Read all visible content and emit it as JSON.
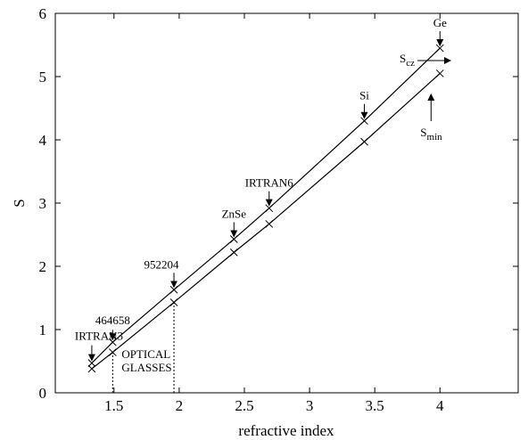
{
  "chart_data": {
    "type": "line",
    "xlabel": "refractive index",
    "ylabel": "S",
    "xlim": [
      1.05,
      4.6
    ],
    "ylim": [
      0,
      6
    ],
    "x_ticks": [
      1.5,
      2,
      2.5,
      3,
      3.5,
      4
    ],
    "x_tick_labels": [
      "1.5",
      "2",
      "2.5",
      "3",
      "3.5",
      "4"
    ],
    "y_ticks": [
      0,
      1,
      2,
      3,
      4,
      5,
      6
    ],
    "y_tick_labels": [
      "0",
      "1",
      "2",
      "3",
      "4",
      "5",
      "6"
    ],
    "grid": false,
    "series": [
      {
        "name": "S_cz",
        "x": [
          1.33,
          1.49,
          1.96,
          2.42,
          2.69,
          3.42,
          4.0
        ],
        "y": [
          0.47,
          0.8,
          1.63,
          2.43,
          2.92,
          4.3,
          5.45
        ]
      },
      {
        "name": "S_min",
        "x": [
          1.33,
          1.49,
          1.96,
          2.42,
          2.69,
          3.42,
          4.0
        ],
        "y": [
          0.38,
          0.64,
          1.43,
          2.22,
          2.67,
          3.97,
          5.05
        ]
      }
    ],
    "vertical_reference_lines": [
      1.49,
      1.96
    ],
    "annotations": {
      "ge": "Ge",
      "si": "Si",
      "irtran6": "IRTRAN6",
      "znse": "ZnSe",
      "n952204": "952204",
      "n464658": "464658",
      "irtran3": "IRTRAN3",
      "optical": "OPTICAL",
      "glasses": "GLASSES",
      "scz_main": "S",
      "scz_sub": "cz",
      "smin_main": "S",
      "smin_sub": "min"
    }
  }
}
